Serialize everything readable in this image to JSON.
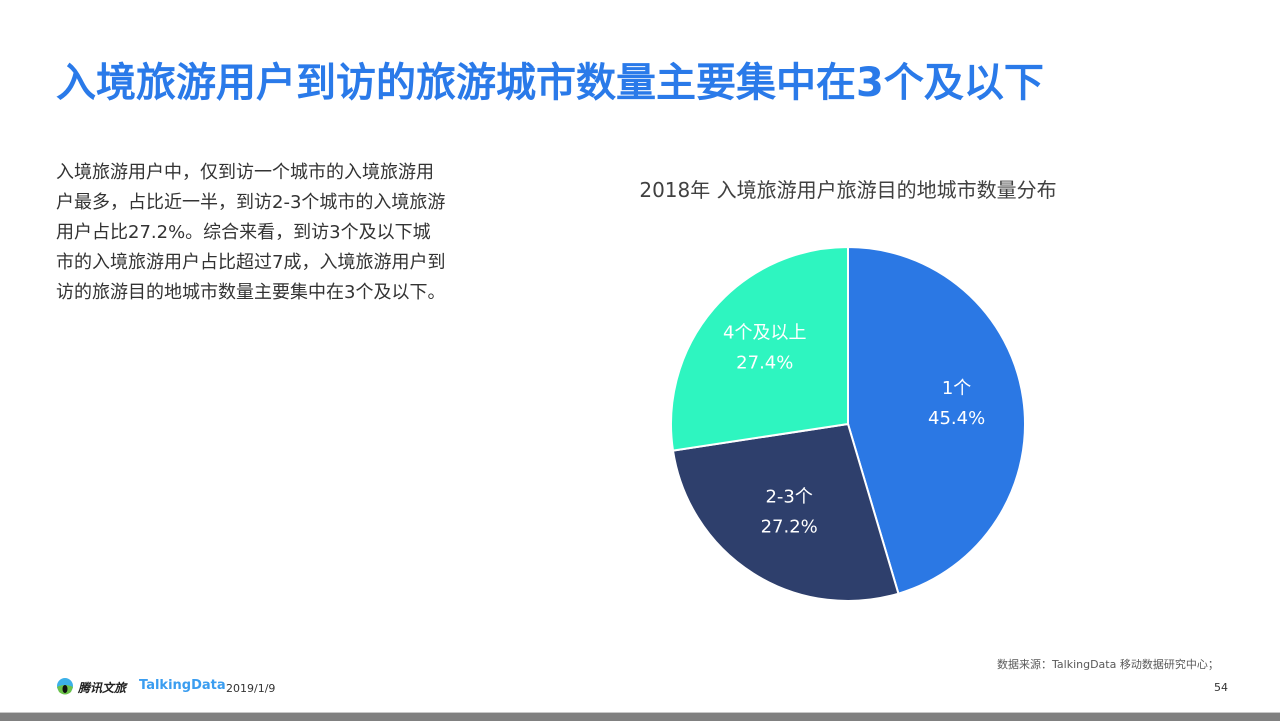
{
  "header": {
    "title": "入境旅游用户到访的旅游城市数量主要集中在3个及以下"
  },
  "description": "入境旅游用户中，仅到访一个城市的入境旅游用户最多，占比近一半，到访2-3个城市的入境旅游用户占比27.2%。综合来看，到访3个及以下城市的入境旅游用户占比超过7成，入境旅游用户到访的旅游目的地城市数量主要集中在3个及以下。",
  "chart_data": {
    "type": "pie",
    "title": "2018年 入境旅游用户旅游目的地城市数量分布",
    "slices": [
      {
        "label": "1个",
        "value": 45.4,
        "display": "45.4%",
        "color": "#2b78e4"
      },
      {
        "label": "2-3个",
        "value": 27.2,
        "display": "27.2%",
        "color": "#2e3f6c"
      },
      {
        "label": "4个及以上",
        "value": 27.4,
        "display": "27.4%",
        "color": "#2ef5c0"
      }
    ],
    "start": "top",
    "direction": "clockwise"
  },
  "footer": {
    "source": "数据来源：TalkingData  移动数据研究中心；",
    "page": "54",
    "date": "2019/1/9",
    "logo_tencent": "腾讯文旅",
    "logo_talkingdata": "TalkingData"
  }
}
